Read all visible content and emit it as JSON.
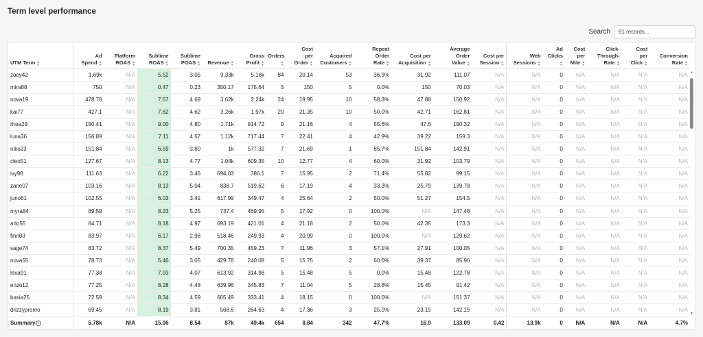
{
  "page": {
    "title": "Term level performance"
  },
  "search": {
    "label": "Search",
    "placeholder": "91 records..."
  },
  "table": {
    "columns": [
      [
        "UTM Term"
      ],
      [
        "Ad",
        "Spend"
      ],
      [
        "Platform",
        "ROAS"
      ],
      [
        "Sublime",
        "ROAS"
      ],
      [
        "Sublime",
        "POAS"
      ],
      [
        "Revenue"
      ],
      [
        "Gross",
        "Profit"
      ],
      [
        "Orders"
      ],
      [
        "Cost",
        "per",
        "Order"
      ],
      [
        "Acquired",
        "Customers"
      ],
      [
        "Repeat",
        "Order",
        "Rate"
      ],
      [
        "Cost per",
        "Acquisition"
      ],
      [
        "Average",
        "Order",
        "Value"
      ],
      [
        "Cost per",
        "Session"
      ],
      [
        "Web",
        "Sessions"
      ],
      [
        "Ad",
        "Clicks"
      ],
      [
        "Cost",
        "per",
        "Mile"
      ],
      [
        "Click-",
        "Through-",
        "Rate"
      ],
      [
        "Cost",
        "per",
        "Click"
      ],
      [
        "Conversion",
        "Rate"
      ]
    ],
    "rows": [
      [
        "zoey42",
        "1.69k",
        "N/A",
        "5.52",
        "3.05",
        "9.33k",
        "5.16k",
        "84",
        "20.14",
        "53",
        "36.9%",
        "31.92",
        "111.07",
        "N/A",
        "N/A",
        "0",
        "N/A",
        "N/A",
        "N/A",
        "N/A"
      ],
      [
        "mira88",
        "750",
        "N/A",
        "0.47",
        "0.23",
        "350.17",
        "175.64",
        "5",
        "150",
        "5",
        "0.0%",
        "150",
        "70.03",
        "N/A",
        "N/A",
        "0",
        "N/A",
        "N/A",
        "N/A",
        "N/A"
      ],
      [
        "nova19",
        "478.78",
        "N/A",
        "7.57",
        "4.69",
        "3.62k",
        "2.24k",
        "24",
        "19.95",
        "10",
        "58.3%",
        "47.88",
        "150.92",
        "N/A",
        "N/A",
        "0",
        "N/A",
        "N/A",
        "N/A",
        "N/A"
      ],
      [
        "kai77",
        "427.1",
        "N/A",
        "7.62",
        "4.62",
        "3.26k",
        "1.97k",
        "20",
        "21.35",
        "10",
        "50.0%",
        "42.71",
        "162.81",
        "N/A",
        "N/A",
        "0",
        "N/A",
        "N/A",
        "N/A",
        "N/A"
      ],
      [
        "rhea29",
        "190.41",
        "N/A",
        "9.00",
        "4.80",
        "1.71k",
        "914.72",
        "9",
        "21.16",
        "4",
        "55.6%",
        "47.6",
        "190.32",
        "N/A",
        "N/A",
        "0",
        "N/A",
        "N/A",
        "N/A",
        "N/A"
      ],
      [
        "luna36",
        "156.89",
        "N/A",
        "7.11",
        "4.57",
        "1.12k",
        "717.44",
        "7",
        "22.41",
        "4",
        "42.9%",
        "39.22",
        "159.3",
        "N/A",
        "N/A",
        "0",
        "N/A",
        "N/A",
        "N/A",
        "N/A"
      ],
      [
        "niko23",
        "151.84",
        "N/A",
        "6.59",
        "3.80",
        "1k",
        "577.32",
        "7",
        "21.69",
        "1",
        "85.7%",
        "151.84",
        "142.91",
        "N/A",
        "N/A",
        "0",
        "N/A",
        "N/A",
        "N/A",
        "N/A"
      ],
      [
        "cleo51",
        "127.67",
        "N/A",
        "8.13",
        "4.77",
        "1.04k",
        "609.35",
        "10",
        "12.77",
        "4",
        "60.0%",
        "31.92",
        "103.79",
        "N/A",
        "N/A",
        "0",
        "N/A",
        "N/A",
        "N/A",
        "N/A"
      ],
      [
        "ivy90",
        "111.63",
        "N/A",
        "6.22",
        "3.46",
        "694.03",
        "386.1",
        "7",
        "15.95",
        "2",
        "71.4%",
        "55.82",
        "99.15",
        "N/A",
        "N/A",
        "0",
        "N/A",
        "N/A",
        "N/A",
        "N/A"
      ],
      [
        "zane07",
        "103.16",
        "N/A",
        "8.13",
        "5.04",
        "838.7",
        "519.62",
        "6",
        "17.19",
        "4",
        "33.3%",
        "25.79",
        "139.78",
        "N/A",
        "N/A",
        "0",
        "N/A",
        "N/A",
        "N/A",
        "N/A"
      ],
      [
        "juno61",
        "102.55",
        "N/A",
        "6.03",
        "3.41",
        "617.99",
        "349.47",
        "4",
        "25.64",
        "2",
        "50.0%",
        "51.27",
        "154.5",
        "N/A",
        "N/A",
        "0",
        "N/A",
        "N/A",
        "N/A",
        "N/A"
      ],
      [
        "myra84",
        "89.59",
        "N/A",
        "8.23",
        "5.25",
        "737.4",
        "469.95",
        "5",
        "17.92",
        "0",
        "100.0%",
        "N/A",
        "147.48",
        "N/A",
        "N/A",
        "0",
        "N/A",
        "N/A",
        "N/A",
        "N/A"
      ],
      [
        "arlo55",
        "84.71",
        "N/A",
        "8.18",
        "4.97",
        "693.19",
        "421.01",
        "4",
        "21.18",
        "2",
        "50.0%",
        "42.35",
        "173.3",
        "N/A",
        "N/A",
        "0",
        "N/A",
        "N/A",
        "N/A",
        "N/A"
      ],
      [
        "finn03",
        "83.97",
        "N/A",
        "6.17",
        "2.98",
        "518.46",
        "249.93",
        "4",
        "20.99",
        "0",
        "100.0%",
        "N/A",
        "129.62",
        "N/A",
        "N/A",
        "0",
        "N/A",
        "N/A",
        "N/A",
        "N/A"
      ],
      [
        "sage74",
        "83.72",
        "N/A",
        "8.37",
        "5.49",
        "700.35",
        "459.23",
        "7",
        "11.96",
        "3",
        "57.1%",
        "27.91",
        "100.05",
        "N/A",
        "N/A",
        "0",
        "N/A",
        "N/A",
        "N/A",
        "N/A"
      ],
      [
        "nova55",
        "78.73",
        "N/A",
        "5.46",
        "3.05",
        "429.78",
        "240.08",
        "5",
        "15.75",
        "2",
        "60.0%",
        "39.37",
        "85.96",
        "N/A",
        "N/A",
        "0",
        "N/A",
        "N/A",
        "N/A",
        "N/A"
      ],
      [
        "lexa91",
        "77.38",
        "N/A",
        "7.93",
        "4.07",
        "613.92",
        "314.98",
        "5",
        "15.48",
        "5",
        "0.0%",
        "15.48",
        "122.78",
        "N/A",
        "N/A",
        "0",
        "N/A",
        "N/A",
        "N/A",
        "N/A"
      ],
      [
        "enzo12",
        "77.25",
        "N/A",
        "8.28",
        "4.48",
        "639.96",
        "345.83",
        "7",
        "11.04",
        "5",
        "28.6%",
        "15.45",
        "91.42",
        "N/A",
        "N/A",
        "0",
        "N/A",
        "N/A",
        "N/A",
        "N/A"
      ],
      [
        "basia25",
        "72.59",
        "N/A",
        "8.34",
        "4.59",
        "605.49",
        "333.41",
        "4",
        "18.15",
        "0",
        "100.0%",
        "N/A",
        "151.37",
        "N/A",
        "N/A",
        "0",
        "N/A",
        "N/A",
        "N/A",
        "N/A"
      ],
      [
        "drizzypromo",
        "69.45",
        "N/A",
        "8.19",
        "3.81",
        "568.6",
        "264.63",
        "4",
        "17.36",
        "3",
        "25.0%",
        "23.15",
        "142.15",
        "N/A",
        "N/A",
        "0",
        "N/A",
        "N/A",
        "N/A",
        "N/A"
      ]
    ],
    "summary": [
      "Summary",
      "5.78k",
      "N/A",
      "15.06",
      "8.54",
      "87k",
      "49.4k",
      "654",
      "8.84",
      "342",
      "47.7%",
      "16.9",
      "133.09",
      "0.42",
      "13.9k",
      "0",
      "N/A",
      "N/A",
      "N/A",
      "4.7%"
    ]
  },
  "colors": {
    "highlight": "#d8f0df",
    "na_text": "#b5b5b5"
  },
  "icons": {
    "summary_info": "info-icon",
    "sort": "sort-arrows-icon"
  }
}
